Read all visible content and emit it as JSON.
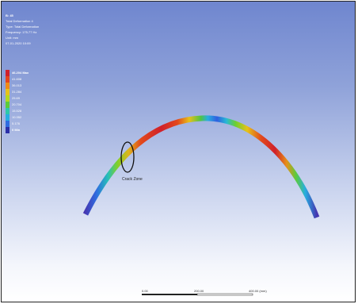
{
  "result": {
    "id": "B: 45",
    "type_line": "Total Deformation 4",
    "type_detail": "Type: Total Deformation",
    "frequency": "Frequency: 175.77 Hz",
    "unit": "Unit: mm",
    "timestamp": "07-01-2020 10:09"
  },
  "legend": {
    "entries": [
      {
        "label": "46.204 Max",
        "color": "#d0202a"
      },
      {
        "label": "41.608",
        "color": "#e4451c"
      },
      {
        "label": "36.013",
        "color": "#f08b18"
      },
      {
        "label": "31.284",
        "color": "#e6c21a"
      },
      {
        "label": "25.69",
        "color": "#b4d820"
      },
      {
        "label": "20.704",
        "color": "#5ccb3c"
      },
      {
        "label": "15.528",
        "color": "#2ec9a8"
      },
      {
        "label": "10.352",
        "color": "#27aee0"
      },
      {
        "label": "5.176",
        "color": "#2f6ce0"
      },
      {
        "label": "0 Min",
        "color": "#2b2fa8"
      }
    ]
  },
  "annotation": {
    "label": "Crack Zone"
  },
  "scale": {
    "labels": [
      "0.00",
      "200.00",
      "400.00 (mm)"
    ]
  }
}
